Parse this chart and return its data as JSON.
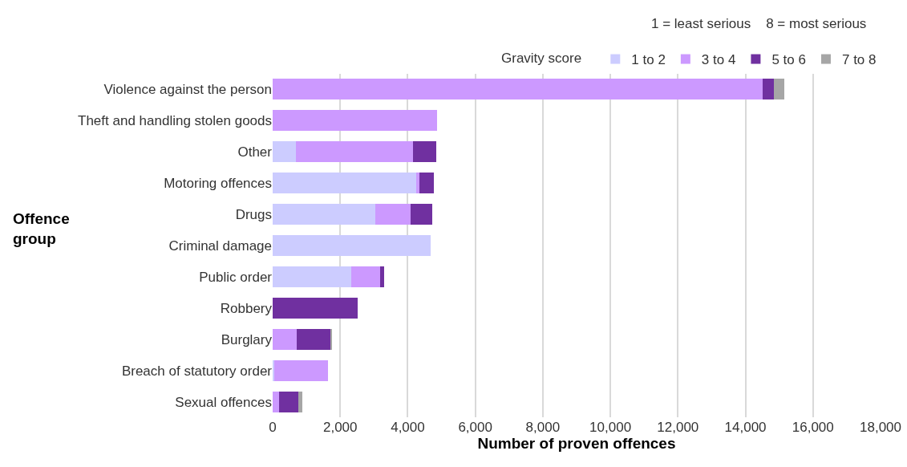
{
  "chart_data": {
    "type": "bar",
    "orientation": "horizontal",
    "stacked": true,
    "xlabel": "Number of proven offences",
    "ylabel": "Offence group",
    "legend_title": "Gravity score",
    "annotations": [
      "1 = least serious    8 = most serious"
    ],
    "categories": [
      "Violence against the person",
      "Theft and handling stolen goods",
      "Other",
      "Motoring offences",
      "Drugs",
      "Criminal damage",
      "Public order",
      "Robbery",
      "Burglary",
      "Breach of statutory order",
      "Sexual offences"
    ],
    "series": [
      {
        "name": "1 to 2",
        "color": "#ccccff",
        "values": [
          0,
          0,
          700,
          4250,
          3050,
          4680,
          2330,
          0,
          0,
          50,
          0
        ]
      },
      {
        "name": "3 to 4",
        "color": "#cc99ff",
        "values": [
          14500,
          4860,
          3450,
          90,
          1030,
          0,
          860,
          0,
          720,
          1600,
          200
        ]
      },
      {
        "name": "5 to 6",
        "color": "#7030a0",
        "values": [
          340,
          0,
          700,
          440,
          650,
          0,
          120,
          2510,
          990,
          0,
          560
        ]
      },
      {
        "name": "7 to 8",
        "color": "#a6a6a6",
        "values": [
          310,
          0,
          0,
          0,
          0,
          0,
          0,
          0,
          30,
          0,
          110
        ]
      }
    ],
    "xlim": [
      0,
      18000
    ],
    "xticks": [
      {
        "value": 0,
        "label": "0"
      },
      {
        "value": 2000,
        "label": "2,000"
      },
      {
        "value": 4000,
        "label": "4,000"
      },
      {
        "value": 6000,
        "label": "6,000"
      },
      {
        "value": 8000,
        "label": "8,000"
      },
      {
        "value": 10000,
        "label": "10,000"
      },
      {
        "value": 12000,
        "label": "12,000"
      },
      {
        "value": 14000,
        "label": "14,000"
      },
      {
        "value": 16000,
        "label": "16,000"
      },
      {
        "value": 18000,
        "label": "18,000"
      }
    ],
    "grid": "x",
    "legend": "top right"
  }
}
